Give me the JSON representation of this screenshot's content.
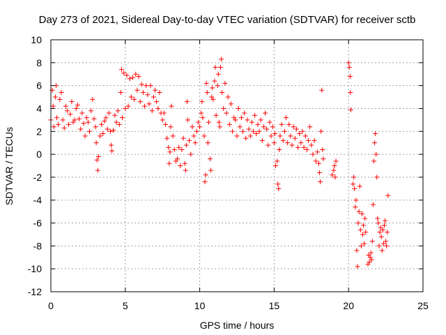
{
  "chart_data": {
    "type": "scatter",
    "title": "Day 273 of 2021, Sidereal Day-to-day VTEC variation (SDTVAR) for receiver sctb",
    "xlabel": "GPS time / hours",
    "ylabel": "SDTVAR / TECUs",
    "xlim": [
      0,
      25
    ],
    "ylim": [
      -12,
      10
    ],
    "xticks": [
      0,
      5,
      10,
      15,
      20,
      25
    ],
    "yticks": [
      -12,
      -10,
      -8,
      -6,
      -4,
      -2,
      0,
      2,
      4,
      6,
      8,
      10
    ],
    "grid": true,
    "marker": "+",
    "marker_color": "#ff0000",
    "series": [
      {
        "name": "SDTVAR",
        "points": [
          [
            0.0,
            3.0
          ],
          [
            0.1,
            5.6
          ],
          [
            0.15,
            4.2
          ],
          [
            0.2,
            2.4
          ],
          [
            0.3,
            5.0
          ],
          [
            0.35,
            6.0
          ],
          [
            0.4,
            3.2
          ],
          [
            0.5,
            2.6
          ],
          [
            0.6,
            4.8
          ],
          [
            0.7,
            5.4
          ],
          [
            0.8,
            3.0
          ],
          [
            0.9,
            2.3
          ],
          [
            1.0,
            4.2
          ],
          [
            1.1,
            3.8
          ],
          [
            1.2,
            2.6
          ],
          [
            1.3,
            3.5
          ],
          [
            1.4,
            4.6
          ],
          [
            1.5,
            2.8
          ],
          [
            1.6,
            3.0
          ],
          [
            1.7,
            4.0
          ],
          [
            1.8,
            4.3
          ],
          [
            1.9,
            3.1
          ],
          [
            2.0,
            2.2
          ],
          [
            2.1,
            3.6
          ],
          [
            2.2,
            2.7
          ],
          [
            2.3,
            1.6
          ],
          [
            2.4,
            3.2
          ],
          [
            2.5,
            2.8
          ],
          [
            2.6,
            2.0
          ],
          [
            2.7,
            3.8
          ],
          [
            2.8,
            4.8
          ],
          [
            2.9,
            3.1
          ],
          [
            3.0,
            2.4
          ],
          [
            3.05,
            1.0
          ],
          [
            3.1,
            -0.5
          ],
          [
            3.15,
            -1.4
          ],
          [
            3.2,
            -0.2
          ],
          [
            3.3,
            1.6
          ],
          [
            3.4,
            2.6
          ],
          [
            3.5,
            1.8
          ],
          [
            3.6,
            2.9
          ],
          [
            3.7,
            3.2
          ],
          [
            3.8,
            2.2
          ],
          [
            3.9,
            3.6
          ],
          [
            4.0,
            2.0
          ],
          [
            4.05,
            0.8
          ],
          [
            4.1,
            0.3
          ],
          [
            4.2,
            2.1
          ],
          [
            4.3,
            3.4
          ],
          [
            4.4,
            2.8
          ],
          [
            4.5,
            3.8
          ],
          [
            4.6,
            2.6
          ],
          [
            4.7,
            5.4
          ],
          [
            4.75,
            7.4
          ],
          [
            4.8,
            3.2
          ],
          [
            4.9,
            7.1
          ],
          [
            5.0,
            4.0
          ],
          [
            5.1,
            6.9
          ],
          [
            5.2,
            4.2
          ],
          [
            5.3,
            6.6
          ],
          [
            5.4,
            5.0
          ],
          [
            5.5,
            6.7
          ],
          [
            5.6,
            4.8
          ],
          [
            5.7,
            7.0
          ],
          [
            5.8,
            5.6
          ],
          [
            5.9,
            6.8
          ],
          [
            6.0,
            4.6
          ],
          [
            6.1,
            6.1
          ],
          [
            6.2,
            5.4
          ],
          [
            6.3,
            4.2
          ],
          [
            6.4,
            6.0
          ],
          [
            6.5,
            5.2
          ],
          [
            6.6,
            4.4
          ],
          [
            6.7,
            6.0
          ],
          [
            6.8,
            3.8
          ],
          [
            6.9,
            5.0
          ],
          [
            7.0,
            5.6
          ],
          [
            7.1,
            4.6
          ],
          [
            7.2,
            4.0
          ],
          [
            7.3,
            5.4
          ],
          [
            7.4,
            3.6
          ],
          [
            7.5,
            3.0
          ],
          [
            7.6,
            3.6
          ],
          [
            7.7,
            2.6
          ],
          [
            7.8,
            1.4
          ],
          [
            7.9,
            0.6
          ],
          [
            7.95,
            -0.8
          ],
          [
            8.0,
            0.2
          ],
          [
            8.05,
            2.4
          ],
          [
            8.1,
            4.2
          ],
          [
            8.2,
            1.6
          ],
          [
            8.3,
            0.4
          ],
          [
            8.4,
            -0.6
          ],
          [
            8.5,
            -0.4
          ],
          [
            8.6,
            0.6
          ],
          [
            8.7,
            -1.0
          ],
          [
            8.8,
            0.4
          ],
          [
            8.9,
            1.4
          ],
          [
            9.0,
            -0.8
          ],
          [
            9.05,
            -1.4
          ],
          [
            9.1,
            0.8
          ],
          [
            9.15,
            4.6
          ],
          [
            9.2,
            3.0
          ],
          [
            9.3,
            1.2
          ],
          [
            9.4,
            0.0
          ],
          [
            9.5,
            2.4
          ],
          [
            9.6,
            1.6
          ],
          [
            9.7,
            1.0
          ],
          [
            9.8,
            2.0
          ],
          [
            9.9,
            2.8
          ],
          [
            10.0,
            2.4
          ],
          [
            10.1,
            3.6
          ],
          [
            10.15,
            4.6
          ],
          [
            10.2,
            3.2
          ],
          [
            10.3,
            1.6
          ],
          [
            10.35,
            -2.4
          ],
          [
            10.4,
            -1.8
          ],
          [
            10.45,
            6.2
          ],
          [
            10.5,
            5.4
          ],
          [
            10.55,
            1.0
          ],
          [
            10.6,
            2.8
          ],
          [
            10.7,
            -0.4
          ],
          [
            10.75,
            -1.4
          ],
          [
            10.8,
            5.0
          ],
          [
            10.85,
            5.8
          ],
          [
            10.9,
            4.8
          ],
          [
            11.0,
            6.4
          ],
          [
            11.05,
            7.6
          ],
          [
            11.1,
            3.4
          ],
          [
            11.2,
            6.0
          ],
          [
            11.25,
            7.0
          ],
          [
            11.3,
            2.8
          ],
          [
            11.35,
            2.4
          ],
          [
            11.4,
            7.6
          ],
          [
            11.45,
            8.3
          ],
          [
            11.5,
            5.4
          ],
          [
            11.6,
            4.0
          ],
          [
            11.7,
            6.2
          ],
          [
            11.8,
            3.6
          ],
          [
            11.9,
            5.0
          ],
          [
            12.0,
            2.6
          ],
          [
            12.1,
            4.4
          ],
          [
            12.2,
            2.0
          ],
          [
            12.3,
            3.2
          ],
          [
            12.4,
            3.0
          ],
          [
            12.5,
            1.6
          ],
          [
            12.6,
            4.0
          ],
          [
            12.7,
            2.4
          ],
          [
            12.8,
            3.2
          ],
          [
            12.9,
            2.0
          ],
          [
            13.0,
            3.6
          ],
          [
            13.1,
            1.4
          ],
          [
            13.2,
            3.0
          ],
          [
            13.3,
            2.2
          ],
          [
            13.4,
            1.6
          ],
          [
            13.5,
            2.8
          ],
          [
            13.6,
            2.0
          ],
          [
            13.7,
            3.4
          ],
          [
            13.8,
            1.8
          ],
          [
            13.9,
            2.6
          ],
          [
            14.0,
            2.0
          ],
          [
            14.1,
            3.0
          ],
          [
            14.2,
            1.2
          ],
          [
            14.3,
            2.4
          ],
          [
            14.4,
            3.6
          ],
          [
            14.5,
            2.2
          ],
          [
            14.6,
            0.8
          ],
          [
            14.7,
            2.8
          ],
          [
            14.8,
            1.6
          ],
          [
            14.9,
            2.4
          ],
          [
            15.0,
            1.0
          ],
          [
            15.05,
            1.8
          ],
          [
            15.1,
            -1.0
          ],
          [
            15.2,
            -0.6
          ],
          [
            15.25,
            -2.6
          ],
          [
            15.3,
            -3.0
          ],
          [
            15.35,
            0.4
          ],
          [
            15.4,
            1.6
          ],
          [
            15.5,
            2.6
          ],
          [
            15.6,
            1.2
          ],
          [
            15.7,
            2.0
          ],
          [
            15.8,
            3.2
          ],
          [
            15.9,
            1.0
          ],
          [
            16.0,
            2.6
          ],
          [
            16.1,
            1.6
          ],
          [
            16.2,
            0.8
          ],
          [
            16.3,
            2.4
          ],
          [
            16.4,
            1.4
          ],
          [
            16.5,
            2.2
          ],
          [
            16.6,
            0.6
          ],
          [
            16.7,
            1.8
          ],
          [
            16.8,
            1.0
          ],
          [
            16.9,
            2.0
          ],
          [
            17.0,
            0.6
          ],
          [
            17.1,
            1.6
          ],
          [
            17.2,
            0.4
          ],
          [
            17.3,
            1.2
          ],
          [
            17.4,
            2.4
          ],
          [
            17.5,
            0.8
          ],
          [
            17.6,
            0.0
          ],
          [
            17.7,
            1.2
          ],
          [
            17.8,
            -0.6
          ],
          [
            17.9,
            0.2
          ],
          [
            18.0,
            -0.8
          ],
          [
            18.05,
            -1.6
          ],
          [
            18.1,
            -2.4
          ],
          [
            18.15,
            2.0
          ],
          [
            18.2,
            5.6
          ],
          [
            18.25,
            0.4
          ],
          [
            18.3,
            -0.4
          ],
          [
            18.9,
            -1.8
          ],
          [
            19.0,
            -1.4
          ],
          [
            19.05,
            -1.0
          ],
          [
            19.1,
            -2.0
          ],
          [
            19.15,
            -0.6
          ],
          [
            20.0,
            8.0
          ],
          [
            20.05,
            7.6
          ],
          [
            20.1,
            6.8
          ],
          [
            20.12,
            5.4
          ],
          [
            20.15,
            3.9
          ],
          [
            20.3,
            -2.6
          ],
          [
            20.35,
            -2.0
          ],
          [
            20.4,
            -3.0
          ],
          [
            20.45,
            -4.6
          ],
          [
            20.5,
            -4.0
          ],
          [
            20.55,
            -8.4
          ],
          [
            20.6,
            -9.8
          ],
          [
            20.65,
            -6.0
          ],
          [
            20.7,
            -5.0
          ],
          [
            20.75,
            -2.8
          ],
          [
            20.8,
            -6.6
          ],
          [
            20.85,
            -8.0
          ],
          [
            20.9,
            -5.2
          ],
          [
            20.95,
            -7.0
          ],
          [
            21.0,
            -6.2
          ],
          [
            21.05,
            -7.8
          ],
          [
            21.1,
            -5.6
          ],
          [
            21.15,
            -6.8
          ],
          [
            21.3,
            -9.6
          ],
          [
            21.35,
            -8.8
          ],
          [
            21.4,
            -9.4
          ],
          [
            21.45,
            -9.0
          ],
          [
            21.5,
            -8.6
          ],
          [
            21.55,
            -9.2
          ],
          [
            21.6,
            -7.6
          ],
          [
            21.65,
            -4.4
          ],
          [
            21.7,
            -0.6
          ],
          [
            21.75,
            1.0
          ],
          [
            21.8,
            1.8
          ],
          [
            21.85,
            0.0
          ],
          [
            21.9,
            -2.0
          ],
          [
            21.95,
            -5.6
          ],
          [
            22.0,
            -6.0
          ],
          [
            22.05,
            -8.0
          ],
          [
            22.1,
            -6.8
          ],
          [
            22.15,
            -6.4
          ],
          [
            22.2,
            -7.2
          ],
          [
            22.25,
            -8.4
          ],
          [
            22.3,
            -6.6
          ],
          [
            22.35,
            -7.8
          ],
          [
            22.4,
            -6.2
          ],
          [
            22.45,
            -5.8
          ],
          [
            22.5,
            -7.6
          ],
          [
            22.55,
            -8.0
          ],
          [
            22.6,
            -6.8
          ],
          [
            22.65,
            -3.6
          ]
        ]
      }
    ]
  }
}
